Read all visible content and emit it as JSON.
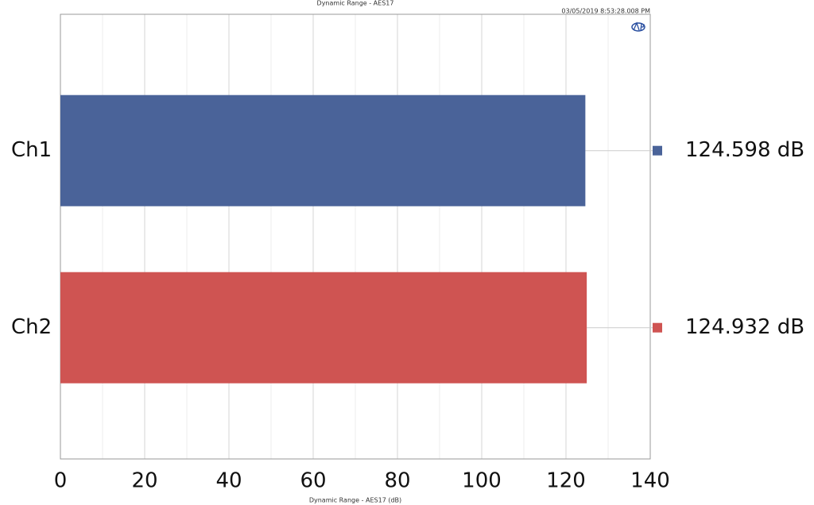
{
  "chart_data": {
    "type": "barh",
    "title": "Dynamic Range - AES17",
    "timestamp": "03/05/2019 8:53:28.008 PM",
    "x_label": "Dynamic Range - AES17 (dB)",
    "categories": [
      "Ch1",
      "Ch2"
    ],
    "values": [
      124.598,
      124.932
    ],
    "value_labels": [
      "124.598 dB",
      "124.932 dB"
    ],
    "colors": [
      "#4a6399",
      "#cf5452"
    ],
    "xlim": [
      0,
      140
    ],
    "xticks": [
      0,
      20,
      40,
      60,
      80,
      100,
      120,
      140
    ],
    "xminorticks": [
      10,
      30,
      50,
      70,
      90,
      110,
      130
    ],
    "grid": true
  }
}
